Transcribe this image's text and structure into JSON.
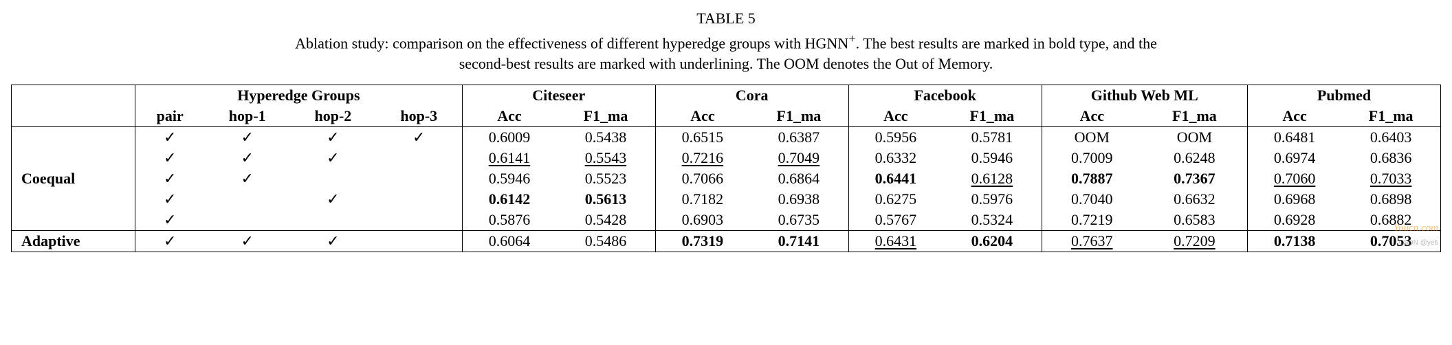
{
  "caption": {
    "label": "TABLE 5",
    "text_a": "Ablation study: comparison on the effectiveness of different hyperedge groups with HGNN",
    "text_sup": "+",
    "text_b": ". The best results are marked in bold type, and the",
    "text_c": "second-best results are marked with underlining. The OOM denotes the Out of Memory."
  },
  "headers": {
    "groups": "Hyperedge Groups",
    "hops": [
      "pair",
      "hop-1",
      "hop-2",
      "hop-3"
    ],
    "datasets": [
      "Citeseer",
      "Cora",
      "Facebook",
      "Github Web ML",
      "Pubmed"
    ],
    "metrics": [
      "Acc",
      "F1_ma"
    ]
  },
  "methods": {
    "coequal": "Coequal",
    "adaptive": "Adaptive"
  },
  "check": "✓",
  "rows": [
    {
      "method_group": "coequal",
      "hops": [
        true,
        true,
        true,
        true
      ],
      "cells": [
        {
          "v": "0.6009"
        },
        {
          "v": "0.5438"
        },
        {
          "v": "0.6515"
        },
        {
          "v": "0.6387"
        },
        {
          "v": "0.5956"
        },
        {
          "v": "0.5781"
        },
        {
          "v": "OOM"
        },
        {
          "v": "OOM"
        },
        {
          "v": "0.6481"
        },
        {
          "v": "0.6403"
        }
      ]
    },
    {
      "method_group": "coequal",
      "hops": [
        true,
        true,
        true,
        false
      ],
      "cells": [
        {
          "v": "0.6141",
          "u": true
        },
        {
          "v": "0.5543",
          "u": true
        },
        {
          "v": "0.7216",
          "u": true
        },
        {
          "v": "0.7049",
          "u": true
        },
        {
          "v": "0.6332"
        },
        {
          "v": "0.5946"
        },
        {
          "v": "0.7009"
        },
        {
          "v": "0.6248"
        },
        {
          "v": "0.6974"
        },
        {
          "v": "0.6836"
        }
      ]
    },
    {
      "method_group": "coequal",
      "hops": [
        true,
        true,
        false,
        false
      ],
      "cells": [
        {
          "v": "0.5946"
        },
        {
          "v": "0.5523"
        },
        {
          "v": "0.7066"
        },
        {
          "v": "0.6864"
        },
        {
          "v": "0.6441",
          "b": true
        },
        {
          "v": "0.6128",
          "u": true
        },
        {
          "v": "0.7887",
          "b": true
        },
        {
          "v": "0.7367",
          "b": true
        },
        {
          "v": "0.7060",
          "u": true
        },
        {
          "v": "0.7033",
          "u": true
        }
      ]
    },
    {
      "method_group": "coequal",
      "hops": [
        true,
        false,
        true,
        false
      ],
      "cells": [
        {
          "v": "0.6142",
          "b": true
        },
        {
          "v": "0.5613",
          "b": true
        },
        {
          "v": "0.7182"
        },
        {
          "v": "0.6938"
        },
        {
          "v": "0.6275"
        },
        {
          "v": "0.5976"
        },
        {
          "v": "0.7040"
        },
        {
          "v": "0.6632"
        },
        {
          "v": "0.6968"
        },
        {
          "v": "0.6898"
        }
      ]
    },
    {
      "method_group": "coequal",
      "hops": [
        true,
        false,
        false,
        false
      ],
      "cells": [
        {
          "v": "0.5876"
        },
        {
          "v": "0.5428"
        },
        {
          "v": "0.6903"
        },
        {
          "v": "0.6735"
        },
        {
          "v": "0.5767"
        },
        {
          "v": "0.5324"
        },
        {
          "v": "0.7219"
        },
        {
          "v": "0.6583"
        },
        {
          "v": "0.6928"
        },
        {
          "v": "0.6882"
        }
      ]
    },
    {
      "method_group": "adaptive",
      "hops": [
        true,
        true,
        true,
        false
      ],
      "cells": [
        {
          "v": "0.6064"
        },
        {
          "v": "0.5486"
        },
        {
          "v": "0.7319",
          "b": true
        },
        {
          "v": "0.7141",
          "b": true
        },
        {
          "v": "0.6431",
          "u": true
        },
        {
          "v": "0.6204",
          "b": true
        },
        {
          "v": "0.7637",
          "u": true
        },
        {
          "v": "0.7209",
          "u": true
        },
        {
          "v": "0.7138",
          "b": true
        },
        {
          "v": "0.7053",
          "b": true
        }
      ]
    }
  ],
  "watermark_a": "Yuucn.com",
  "watermark_b": "CSDN @ye6"
}
